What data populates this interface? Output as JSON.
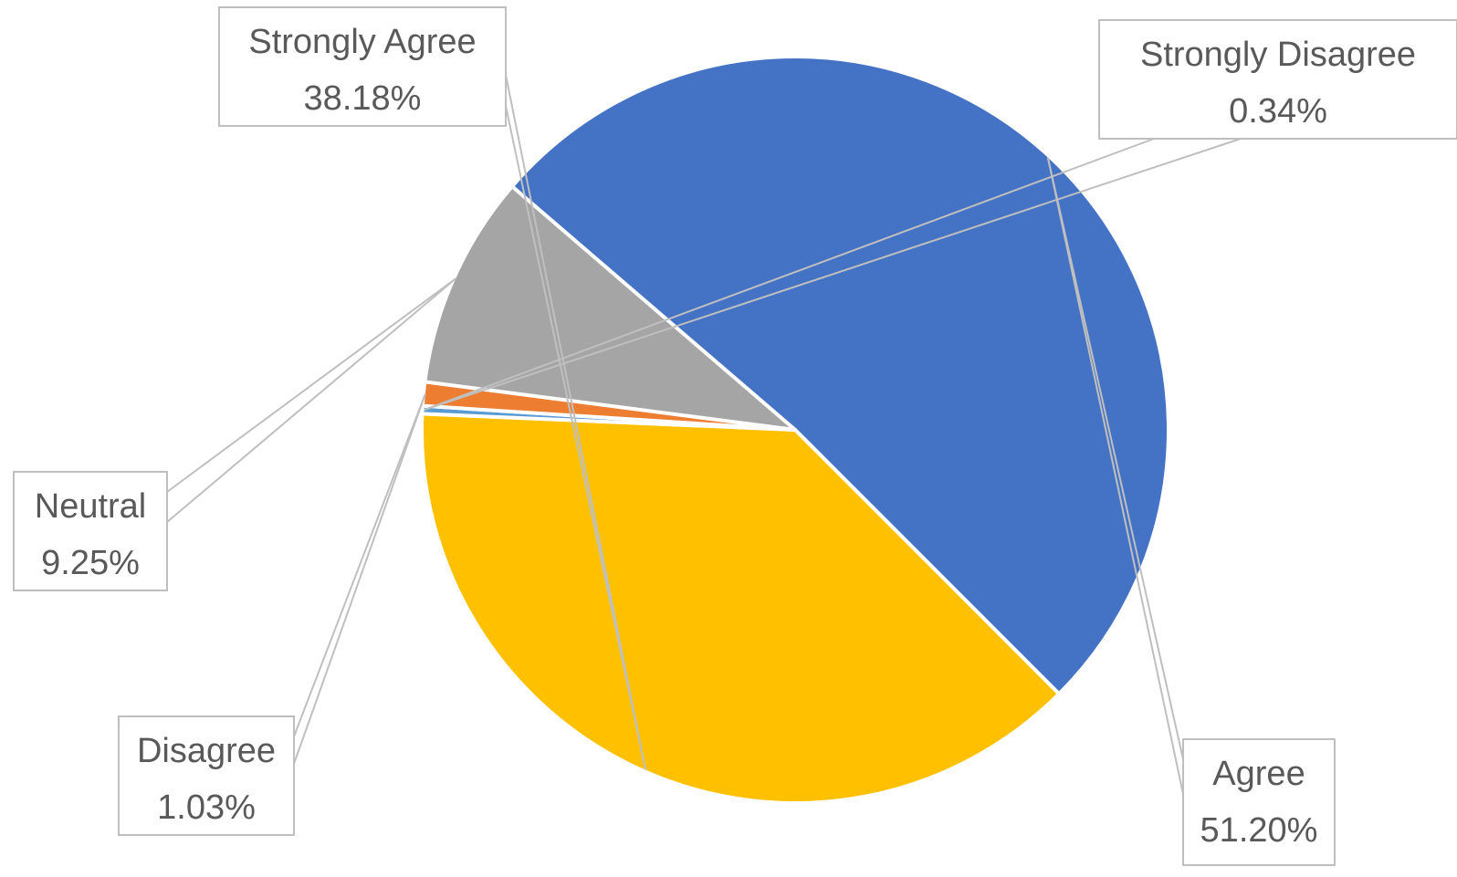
{
  "chart_data": {
    "type": "pie",
    "title": "",
    "slices": [
      {
        "name": "Agree",
        "value": 51.2,
        "label": "51.20%",
        "color": "#4472C4"
      },
      {
        "name": "Strongly Agree",
        "value": 38.18,
        "label": "38.18%",
        "color": "#FFC000"
      },
      {
        "name": "Strongly Disagree",
        "value": 0.34,
        "label": "0.34%",
        "color": "#5B9BD5"
      },
      {
        "name": "Disagree",
        "value": 1.03,
        "label": "1.03%",
        "color": "#ED7D31"
      },
      {
        "name": "Neutral",
        "value": 9.25,
        "label": "9.25%",
        "color": "#A5A5A5"
      }
    ],
    "legend": "none",
    "data_labels": "callout boxes with category name and percentage"
  }
}
